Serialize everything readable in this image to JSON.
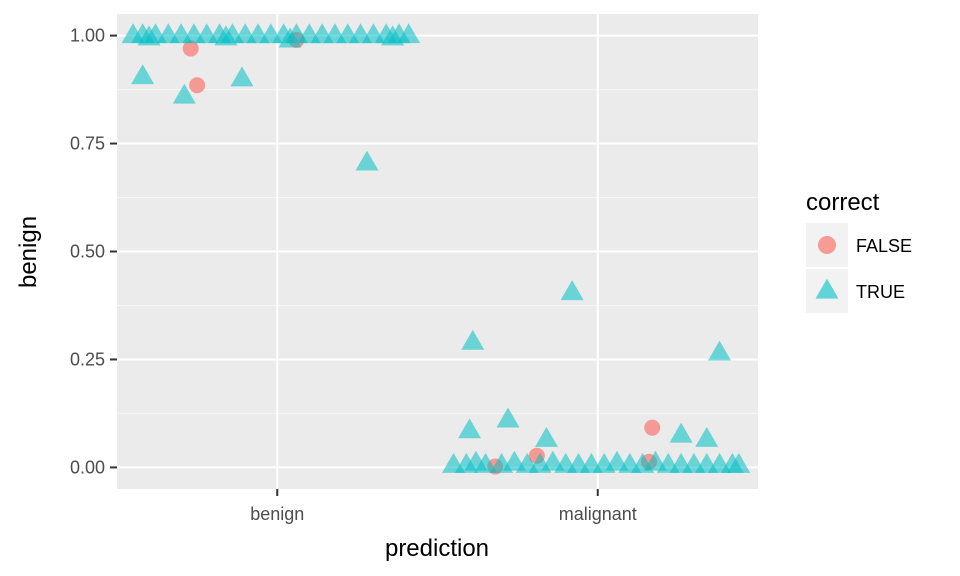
{
  "chart_data": {
    "type": "scatter",
    "xlabel": "prediction",
    "ylabel": "benign",
    "x_categories": [
      "benign",
      "malignant"
    ],
    "y_ticks": [
      "0.00",
      "0.25",
      "0.50",
      "0.75",
      "1.00"
    ],
    "ylim": [
      -0.05,
      1.05
    ],
    "grid": true,
    "legend": {
      "title": "correct",
      "position": "right",
      "entries": [
        {
          "label": "FALSE",
          "shape": "circle",
          "color": "#F8766D"
        },
        {
          "label": "TRUE",
          "shape": "triangle",
          "color": "#00BFC4"
        }
      ]
    },
    "series": [
      {
        "name": "FALSE",
        "color": "#F8766D",
        "shape": "circle",
        "points": [
          {
            "x": "benign",
            "jitter": -0.27,
            "y": 0.97
          },
          {
            "x": "benign",
            "jitter": -0.25,
            "y": 0.885
          },
          {
            "x": "benign",
            "jitter": 0.06,
            "y": 0.99
          },
          {
            "x": "malignant",
            "jitter": -0.32,
            "y": 0.002
          },
          {
            "x": "malignant",
            "jitter": -0.19,
            "y": 0.027
          },
          {
            "x": "malignant",
            "jitter": 0.17,
            "y": 0.092
          },
          {
            "x": "malignant",
            "jitter": 0.16,
            "y": 0.013
          }
        ]
      },
      {
        "name": "TRUE",
        "color": "#00BFC4",
        "shape": "triangle",
        "points": [
          {
            "x": "benign",
            "jitter": -0.45,
            "y": 1.0
          },
          {
            "x": "benign",
            "jitter": -0.42,
            "y": 1.0
          },
          {
            "x": "benign",
            "jitter": -0.38,
            "y": 1.0
          },
          {
            "x": "benign",
            "jitter": -0.34,
            "y": 1.0
          },
          {
            "x": "benign",
            "jitter": -0.3,
            "y": 1.0
          },
          {
            "x": "benign",
            "jitter": -0.26,
            "y": 1.0
          },
          {
            "x": "benign",
            "jitter": -0.22,
            "y": 1.0
          },
          {
            "x": "benign",
            "jitter": -0.18,
            "y": 1.0
          },
          {
            "x": "benign",
            "jitter": -0.14,
            "y": 1.0
          },
          {
            "x": "benign",
            "jitter": -0.1,
            "y": 1.0
          },
          {
            "x": "benign",
            "jitter": -0.06,
            "y": 1.0
          },
          {
            "x": "benign",
            "jitter": -0.02,
            "y": 1.0
          },
          {
            "x": "benign",
            "jitter": 0.02,
            "y": 1.0
          },
          {
            "x": "benign",
            "jitter": 0.06,
            "y": 1.0
          },
          {
            "x": "benign",
            "jitter": 0.1,
            "y": 1.0
          },
          {
            "x": "benign",
            "jitter": 0.14,
            "y": 1.0
          },
          {
            "x": "benign",
            "jitter": 0.18,
            "y": 1.0
          },
          {
            "x": "benign",
            "jitter": 0.22,
            "y": 1.0
          },
          {
            "x": "benign",
            "jitter": 0.26,
            "y": 1.0
          },
          {
            "x": "benign",
            "jitter": 0.3,
            "y": 1.0
          },
          {
            "x": "benign",
            "jitter": 0.34,
            "y": 1.0
          },
          {
            "x": "benign",
            "jitter": 0.38,
            "y": 1.0
          },
          {
            "x": "benign",
            "jitter": 0.41,
            "y": 1.0
          },
          {
            "x": "benign",
            "jitter": -0.4,
            "y": 0.995
          },
          {
            "x": "benign",
            "jitter": -0.16,
            "y": 0.995
          },
          {
            "x": "benign",
            "jitter": 0.04,
            "y": 0.99
          },
          {
            "x": "benign",
            "jitter": 0.36,
            "y": 0.995
          },
          {
            "x": "benign",
            "jitter": -0.42,
            "y": 0.905
          },
          {
            "x": "benign",
            "jitter": -0.29,
            "y": 0.86
          },
          {
            "x": "benign",
            "jitter": -0.11,
            "y": 0.9
          },
          {
            "x": "benign",
            "jitter": 0.28,
            "y": 0.705
          },
          {
            "x": "malignant",
            "jitter": -0.4,
            "y": 0.085
          },
          {
            "x": "malignant",
            "jitter": -0.39,
            "y": 0.29
          },
          {
            "x": "malignant",
            "jitter": -0.28,
            "y": 0.11
          },
          {
            "x": "malignant",
            "jitter": -0.16,
            "y": 0.065
          },
          {
            "x": "malignant",
            "jitter": -0.08,
            "y": 0.405
          },
          {
            "x": "malignant",
            "jitter": 0.26,
            "y": 0.075
          },
          {
            "x": "malignant",
            "jitter": 0.34,
            "y": 0.065
          },
          {
            "x": "malignant",
            "jitter": 0.38,
            "y": 0.265
          },
          {
            "x": "malignant",
            "jitter": -0.45,
            "y": 0.005
          },
          {
            "x": "malignant",
            "jitter": -0.41,
            "y": 0.005
          },
          {
            "x": "malignant",
            "jitter": -0.38,
            "y": 0.01
          },
          {
            "x": "malignant",
            "jitter": -0.35,
            "y": 0.005
          },
          {
            "x": "malignant",
            "jitter": -0.3,
            "y": 0.005
          },
          {
            "x": "malignant",
            "jitter": -0.26,
            "y": 0.01
          },
          {
            "x": "malignant",
            "jitter": -0.22,
            "y": 0.005
          },
          {
            "x": "malignant",
            "jitter": -0.18,
            "y": 0.005
          },
          {
            "x": "malignant",
            "jitter": -0.14,
            "y": 0.01
          },
          {
            "x": "malignant",
            "jitter": -0.1,
            "y": 0.005
          },
          {
            "x": "malignant",
            "jitter": -0.06,
            "y": 0.005
          },
          {
            "x": "malignant",
            "jitter": -0.02,
            "y": 0.005
          },
          {
            "x": "malignant",
            "jitter": 0.02,
            "y": 0.005
          },
          {
            "x": "malignant",
            "jitter": 0.06,
            "y": 0.01
          },
          {
            "x": "malignant",
            "jitter": 0.1,
            "y": 0.005
          },
          {
            "x": "malignant",
            "jitter": 0.14,
            "y": 0.005
          },
          {
            "x": "malignant",
            "jitter": 0.18,
            "y": 0.01
          },
          {
            "x": "malignant",
            "jitter": 0.22,
            "y": 0.005
          },
          {
            "x": "malignant",
            "jitter": 0.26,
            "y": 0.005
          },
          {
            "x": "malignant",
            "jitter": 0.3,
            "y": 0.005
          },
          {
            "x": "malignant",
            "jitter": 0.34,
            "y": 0.005
          },
          {
            "x": "malignant",
            "jitter": 0.38,
            "y": 0.005
          },
          {
            "x": "malignant",
            "jitter": 0.42,
            "y": 0.005
          },
          {
            "x": "malignant",
            "jitter": 0.44,
            "y": 0.005
          }
        ]
      }
    ]
  }
}
